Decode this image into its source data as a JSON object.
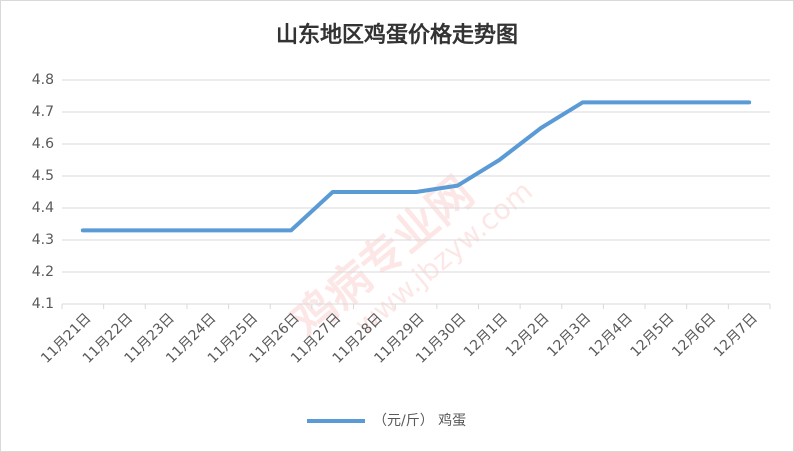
{
  "chart_data": {
    "type": "line",
    "title": "山东地区鸡蛋价格走势图",
    "watermark": [
      "鸡病专业网",
      "www.jbzyw.com"
    ],
    "categories": [
      "11月21日",
      "11月22日",
      "11月23日",
      "11月24日",
      "11月25日",
      "11月26日",
      "11月27日",
      "11月28日",
      "11月29日",
      "11月30日",
      "12月1日",
      "12月2日",
      "12月3日",
      "12月4日",
      "12月5日",
      "12月6日",
      "12月7日"
    ],
    "series": [
      {
        "name": "（元/斤） 鸡蛋",
        "color": "#5b9bd5",
        "values": [
          4.33,
          4.33,
          4.33,
          4.33,
          4.33,
          4.33,
          4.45,
          4.45,
          4.45,
          4.47,
          4.55,
          4.65,
          4.73,
          4.73,
          4.73,
          4.73,
          4.73
        ]
      }
    ],
    "ylim": [
      4.1,
      4.8
    ],
    "yticks": [
      4.1,
      4.2,
      4.3,
      4.4,
      4.5,
      4.6,
      4.7,
      4.8
    ],
    "grid": true,
    "legend": "bottom"
  }
}
